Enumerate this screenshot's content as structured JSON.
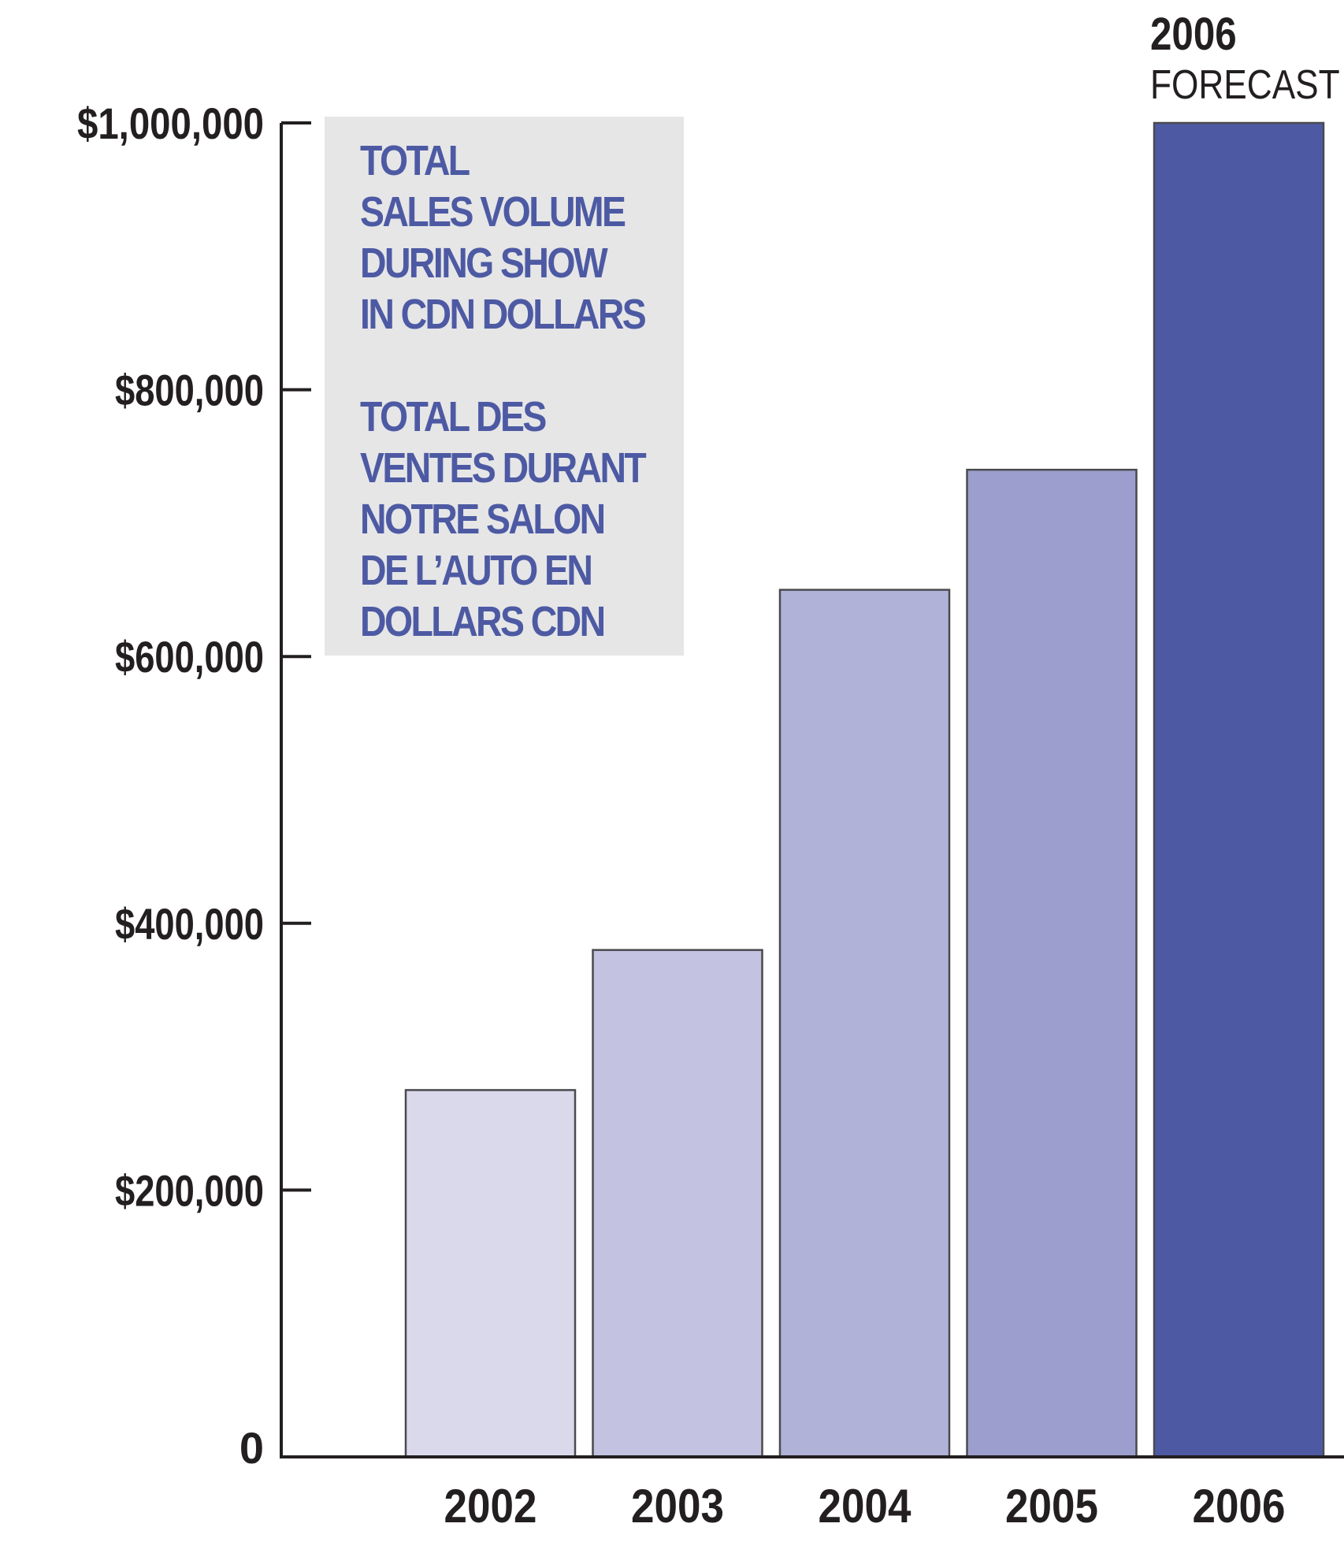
{
  "chart_data": {
    "type": "bar",
    "categories": [
      "2002",
      "2003",
      "2004",
      "2005",
      "2006"
    ],
    "values": [
      275000,
      380000,
      650000,
      740000,
      1000000
    ],
    "bar_colors": [
      "#dad9ec",
      "#c3c3e1",
      "#b1b2d8",
      "#9c9ecd",
      "#4d5aa3"
    ],
    "y_ticks": [
      0,
      200000,
      400000,
      600000,
      800000,
      1000000
    ],
    "y_tick_labels": [
      "0",
      "$200,000",
      "$400,000",
      "$600,000",
      "$800,000",
      "$1,000,000"
    ],
    "ylim": [
      0,
      1000000
    ],
    "grid": false,
    "legend_position": "top-left",
    "legend_lines_en": [
      "TOTAL",
      "SALES VOLUME",
      "DURING SHOW",
      "IN CDN DOLLARS"
    ],
    "legend_lines_fr": [
      "TOTAL DES",
      "VENTES DURANT",
      "NOTRE SALON",
      "DE L’AUTO EN",
      "DOLLARS CDN"
    ],
    "legend_text_color": "#4d5aa3",
    "annotation": {
      "category": "2006",
      "year": "2006",
      "label": "FORECAST"
    },
    "axis_color": "#231f20",
    "text_color": "#231f20"
  }
}
